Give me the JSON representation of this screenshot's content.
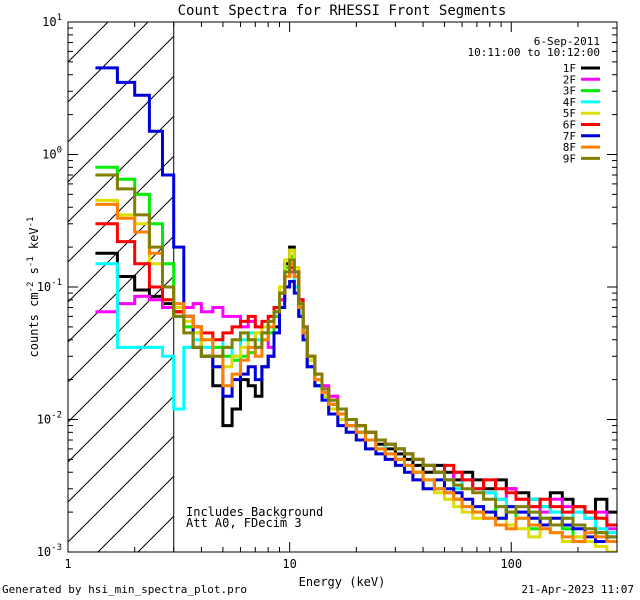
{
  "chart_data": {
    "type": "line",
    "title": "Count Spectra for RHESSI Front Segments",
    "date": "6-Sep-2011",
    "time_range": "10:11:00 to 10:12:00",
    "xlabel": "Energy (keV)",
    "ylabel_parts": {
      "prefix": "counts cm",
      "sup1": "-2",
      "mid": " s",
      "sup2": "-1",
      "mid2": " keV",
      "sup3": "-1"
    },
    "xscale": "log",
    "yscale": "log",
    "xlim": [
      1,
      300
    ],
    "ylim": [
      0.001,
      10
    ],
    "x_tick_labels": [
      {
        "value": 1,
        "label": "1"
      },
      {
        "value": 10,
        "label": "10"
      },
      {
        "value": 100,
        "label": "100"
      }
    ],
    "y_tick_labels": [
      {
        "value": 0.001,
        "base": "10",
        "exp": "-3"
      },
      {
        "value": 0.01,
        "base": "10",
        "exp": "-2"
      },
      {
        "value": 0.1,
        "base": "10",
        "exp": "-1"
      },
      {
        "value": 1,
        "base": "10",
        "exp": "0"
      },
      {
        "value": 10,
        "base": "10",
        "exp": "1"
      }
    ],
    "shaded_region": {
      "xmin": 1,
      "xmax": 3,
      "style": "hatched"
    },
    "annotations": [
      "Includes Background",
      "Att A0, FDecim 3"
    ],
    "legend_position": "top-right",
    "energy_bins_low": [
      1.33,
      1.67,
      2.0,
      2.33,
      2.67,
      3.0,
      3.33,
      3.67,
      4.0,
      4.5,
      5.0,
      5.5,
      6.0,
      6.5,
      7.0,
      7.5,
      8.0,
      8.5,
      9.0,
      9.5,
      10.0,
      10.5,
      11.0,
      11.5,
      12.0,
      13.0,
      14.0,
      15.0,
      16.5,
      18.0,
      20.0,
      22.0,
      24.5,
      27.0,
      30.0,
      33.0,
      36.0,
      40.0,
      45.0,
      50.0,
      55.0,
      60.0,
      67.0,
      75.0,
      85.0,
      95.0,
      105.0,
      120.0,
      135.0,
      150.0,
      170.0,
      190.0,
      215.0,
      240.0,
      270.0
    ],
    "energy_bins_high": [
      1.67,
      2.0,
      2.33,
      2.67,
      3.0,
      3.33,
      3.67,
      4.0,
      4.5,
      5.0,
      5.5,
      6.0,
      6.5,
      7.0,
      7.5,
      8.0,
      8.5,
      9.0,
      9.5,
      10.0,
      10.5,
      11.0,
      11.5,
      12.0,
      13.0,
      14.0,
      15.0,
      16.5,
      18.0,
      20.0,
      22.0,
      24.5,
      27.0,
      30.0,
      33.0,
      36.0,
      40.0,
      45.0,
      50.0,
      55.0,
      60.0,
      67.0,
      75.0,
      85.0,
      95.0,
      105.0,
      120.0,
      135.0,
      150.0,
      170.0,
      190.0,
      215.0,
      240.0,
      270.0,
      300.0
    ],
    "series": [
      {
        "name": "1F",
        "color": "#000000",
        "values": [
          0.18,
          0.12,
          0.095,
          0.085,
          0.075,
          0.065,
          0.06,
          0.05,
          0.03,
          0.018,
          0.009,
          0.012,
          0.02,
          0.018,
          0.015,
          0.025,
          0.03,
          0.05,
          0.08,
          0.15,
          0.2,
          0.12,
          0.06,
          0.04,
          0.025,
          0.018,
          0.015,
          0.013,
          0.011,
          0.009,
          0.008,
          0.007,
          0.0065,
          0.006,
          0.0055,
          0.005,
          0.0045,
          0.004,
          0.0045,
          0.004,
          0.0035,
          0.004,
          0.0035,
          0.003,
          0.0035,
          0.003,
          0.0028,
          0.0025,
          0.0022,
          0.0028,
          0.0025,
          0.0022,
          0.002,
          0.0025,
          0.002
        ]
      },
      {
        "name": "2F",
        "color": "#ff00ff",
        "values": [
          0.065,
          0.075,
          0.085,
          0.08,
          0.07,
          0.06,
          0.07,
          0.075,
          0.065,
          0.07,
          0.06,
          0.06,
          0.05,
          0.055,
          0.05,
          0.045,
          0.035,
          0.06,
          0.08,
          0.12,
          0.13,
          0.12,
          0.08,
          0.05,
          0.03,
          0.02,
          0.018,
          0.015,
          0.012,
          0.01,
          0.009,
          0.008,
          0.007,
          0.0065,
          0.006,
          0.0055,
          0.005,
          0.0045,
          0.004,
          0.0035,
          0.004,
          0.0035,
          0.003,
          0.0028,
          0.0025,
          0.003,
          0.0025,
          0.0022,
          0.002,
          0.0025,
          0.0022,
          0.002,
          0.0018,
          0.002,
          0.0015
        ]
      },
      {
        "name": "3F",
        "color": "#00ee00",
        "values": [
          0.8,
          0.65,
          0.5,
          0.3,
          0.15,
          0.06,
          0.05,
          0.045,
          0.04,
          0.035,
          0.03,
          0.028,
          0.03,
          0.032,
          0.035,
          0.04,
          0.045,
          0.06,
          0.09,
          0.14,
          0.17,
          0.13,
          0.07,
          0.045,
          0.03,
          0.02,
          0.016,
          0.013,
          0.011,
          0.009,
          0.008,
          0.007,
          0.006,
          0.0055,
          0.005,
          0.0045,
          0.004,
          0.0035,
          0.003,
          0.0028,
          0.0025,
          0.0022,
          0.002,
          0.0018,
          0.0022,
          0.002,
          0.0018,
          0.0015,
          0.0018,
          0.0016,
          0.0015,
          0.0013,
          0.0012,
          0.0014,
          0.0012
        ]
      },
      {
        "name": "4F",
        "color": "#00ffff",
        "values": [
          0.15,
          0.035,
          0.035,
          0.035,
          0.03,
          0.012,
          0.035,
          0.04,
          0.035,
          0.04,
          0.035,
          0.03,
          0.04,
          0.045,
          0.04,
          0.045,
          0.05,
          0.07,
          0.1,
          0.13,
          0.14,
          0.1,
          0.06,
          0.04,
          0.025,
          0.018,
          0.014,
          0.012,
          0.01,
          0.009,
          0.008,
          0.007,
          0.006,
          0.0065,
          0.006,
          0.0055,
          0.005,
          0.0045,
          0.004,
          0.0035,
          0.003,
          0.0035,
          0.003,
          0.0028,
          0.0025,
          0.0022,
          0.002,
          0.0025,
          0.0022,
          0.002,
          0.0018,
          0.002,
          0.0018,
          0.0015,
          0.0014
        ]
      },
      {
        "name": "5F",
        "color": "#dddd00",
        "values": [
          0.45,
          0.35,
          0.3,
          0.15,
          0.08,
          0.07,
          0.055,
          0.045,
          0.03,
          0.025,
          0.025,
          0.03,
          0.035,
          0.04,
          0.045,
          0.05,
          0.055,
          0.07,
          0.1,
          0.16,
          0.19,
          0.14,
          0.07,
          0.045,
          0.028,
          0.02,
          0.015,
          0.012,
          0.01,
          0.008,
          0.007,
          0.006,
          0.0055,
          0.005,
          0.0045,
          0.004,
          0.0035,
          0.003,
          0.0028,
          0.0025,
          0.0022,
          0.002,
          0.0018,
          0.002,
          0.0018,
          0.0016,
          0.0015,
          0.0013,
          0.0015,
          0.0014,
          0.0012,
          0.0013,
          0.0012,
          0.0011,
          0.001
        ]
      },
      {
        "name": "6F",
        "color": "#ff0000",
        "values": [
          0.3,
          0.22,
          0.15,
          0.1,
          0.08,
          0.065,
          0.06,
          0.05,
          0.045,
          0.04,
          0.045,
          0.05,
          0.055,
          0.06,
          0.05,
          0.055,
          0.06,
          0.07,
          0.09,
          0.12,
          0.14,
          0.13,
          0.08,
          0.05,
          0.03,
          0.022,
          0.017,
          0.014,
          0.012,
          0.01,
          0.009,
          0.008,
          0.007,
          0.0065,
          0.006,
          0.0055,
          0.005,
          0.0045,
          0.004,
          0.0045,
          0.004,
          0.0035,
          0.003,
          0.0035,
          0.003,
          0.0028,
          0.0025,
          0.0022,
          0.0025,
          0.0022,
          0.002,
          0.0022,
          0.002,
          0.0018,
          0.0016
        ]
      },
      {
        "name": "7F",
        "color": "#0000dd",
        "values": [
          4.5,
          3.5,
          2.8,
          1.5,
          0.7,
          0.2,
          0.06,
          0.035,
          0.03,
          0.025,
          0.015,
          0.02,
          0.022,
          0.025,
          0.02,
          0.025,
          0.03,
          0.045,
          0.07,
          0.1,
          0.11,
          0.09,
          0.06,
          0.04,
          0.025,
          0.018,
          0.014,
          0.011,
          0.009,
          0.008,
          0.007,
          0.006,
          0.0055,
          0.005,
          0.0045,
          0.004,
          0.0035,
          0.003,
          0.0035,
          0.003,
          0.0028,
          0.0025,
          0.0022,
          0.002,
          0.0018,
          0.0022,
          0.002,
          0.0018,
          0.0016,
          0.0018,
          0.0016,
          0.0015,
          0.0013,
          0.0012,
          0.0013
        ]
      },
      {
        "name": "8F",
        "color": "#ff8000",
        "values": [
          0.42,
          0.33,
          0.26,
          0.18,
          0.1,
          0.075,
          0.06,
          0.05,
          0.04,
          0.03,
          0.018,
          0.022,
          0.028,
          0.035,
          0.03,
          0.04,
          0.05,
          0.065,
          0.09,
          0.12,
          0.15,
          0.12,
          0.07,
          0.045,
          0.03,
          0.02,
          0.016,
          0.013,
          0.011,
          0.009,
          0.008,
          0.007,
          0.006,
          0.0055,
          0.005,
          0.0045,
          0.004,
          0.0035,
          0.003,
          0.0028,
          0.0025,
          0.0022,
          0.002,
          0.0018,
          0.0016,
          0.0015,
          0.0018,
          0.0016,
          0.0015,
          0.0014,
          0.0013,
          0.0012,
          0.0014,
          0.0013,
          0.0012
        ]
      },
      {
        "name": "9F",
        "color": "#808000",
        "values": [
          0.7,
          0.55,
          0.35,
          0.2,
          0.1,
          0.06,
          0.045,
          0.035,
          0.03,
          0.03,
          0.035,
          0.04,
          0.045,
          0.04,
          0.035,
          0.045,
          0.055,
          0.065,
          0.09,
          0.13,
          0.16,
          0.13,
          0.075,
          0.05,
          0.03,
          0.022,
          0.017,
          0.014,
          0.012,
          0.01,
          0.009,
          0.008,
          0.007,
          0.0065,
          0.006,
          0.0055,
          0.005,
          0.0045,
          0.004,
          0.0035,
          0.0032,
          0.003,
          0.0028,
          0.0025,
          0.0022,
          0.002,
          0.0022,
          0.002,
          0.0018,
          0.0016,
          0.0018,
          0.0016,
          0.0015,
          0.0014,
          0.0013
        ]
      }
    ]
  },
  "footer": {
    "left": "Generated by hsi_min_spectra_plot.pro",
    "right": "21-Apr-2023 11:07"
  }
}
